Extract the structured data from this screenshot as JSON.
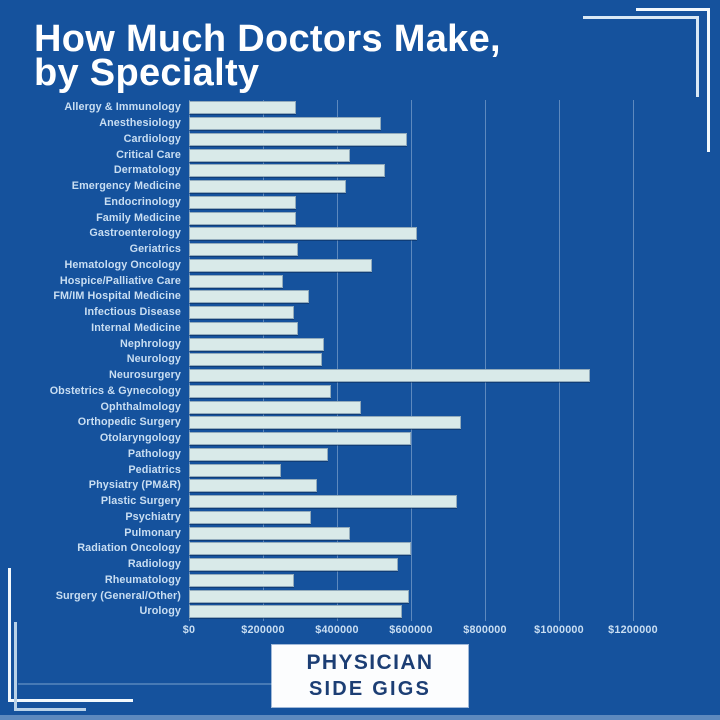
{
  "title": {
    "line1": "How Much Doctors Make,",
    "line2": "by Specialty"
  },
  "chart_data": {
    "type": "bar",
    "orientation": "horizontal",
    "title": "How Much Doctors Make, by Specialty",
    "xlabel": "",
    "ylabel": "",
    "grid": true,
    "xlim": [
      0,
      1273000
    ],
    "categories": [
      "Allergy & Immunology",
      "Anesthesiology",
      "Cardiology",
      "Critical Care",
      "Dermatology",
      "Emergency Medicine",
      "Endocrinology",
      "Family Medicine",
      "Gastroenterology",
      "Geriatrics",
      "Hematology Oncology",
      "Hospice/Palliative Care",
      "FM/IM Hospital Medicine",
      "Infectious Disease",
      "Internal Medicine",
      "Nephrology",
      "Neurology",
      "Neurosurgery",
      "Obstetrics & Gynecology",
      "Ophthalmology",
      "Orthopedic Surgery",
      "Otolaryngology",
      "Pathology",
      "Pediatrics",
      "Physiatry (PM&R)",
      "Plastic Surgery",
      "Psychiatry",
      "Pulmonary",
      "Radiation Oncology",
      "Radiology",
      "Rheumatology",
      "Surgery (General/Other)",
      "Urology"
    ],
    "values": [
      290000,
      520000,
      590000,
      435000,
      530000,
      425000,
      290000,
      290000,
      615000,
      295000,
      495000,
      255000,
      325000,
      285000,
      295000,
      365000,
      360000,
      1085000,
      385000,
      465000,
      735000,
      600000,
      375000,
      250000,
      345000,
      725000,
      330000,
      435000,
      600000,
      565000,
      285000,
      595000,
      575000
    ],
    "x_ticks": [
      {
        "value": 0,
        "label": "$0"
      },
      {
        "value": 200000,
        "label": "$200000"
      },
      {
        "value": 400000,
        "label": "$400000"
      },
      {
        "value": 600000,
        "label": "$600000"
      },
      {
        "value": 800000,
        "label": "$800000"
      },
      {
        "value": 1000000,
        "label": "$1000000"
      },
      {
        "value": 1200000,
        "label": "$1200000"
      }
    ],
    "legend": null
  },
  "logo": {
    "line1": "PHYSICIAN",
    "line2": "SIDE GIGS"
  },
  "colors": {
    "background": "#15529d",
    "bar_fill": "#d9eae9",
    "title_text": "#ffffff",
    "label_text": "#c9def2",
    "gridline": "#cde2f5",
    "logo_background": "#fcfdfe",
    "logo_text": "#1c3e74",
    "bracket_outer": "#f3f9fd",
    "bracket_inner": "#b9d2e8",
    "bottom_strip": "#5d89be"
  }
}
